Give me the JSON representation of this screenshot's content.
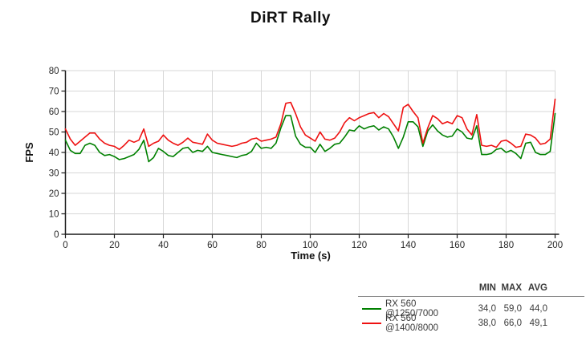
{
  "title": "DiRT Rally",
  "axes": {
    "x_label": "Time (s)",
    "y_label": "FPS"
  },
  "legend": {
    "headers": [
      "MIN",
      "MAX",
      "AVG"
    ]
  },
  "colors": {
    "green_series": "#008000",
    "red_series": "#ee1111",
    "grid": "#d7d7d7",
    "axis": "#1a1a1a",
    "tick_text": "#262626",
    "legend_text": "#3a3a3a",
    "legend_rule": "#888888",
    "background": "#ffffff"
  },
  "chart_data": {
    "type": "line",
    "title": "DiRT Rally",
    "xlabel": "Time (s)",
    "ylabel": "FPS",
    "xlim": [
      0,
      200
    ],
    "ylim": [
      0,
      80
    ],
    "xticks": [
      0,
      20,
      40,
      60,
      80,
      100,
      120,
      140,
      160,
      180,
      200
    ],
    "yticks": [
      0,
      10,
      20,
      30,
      40,
      50,
      60,
      70,
      80
    ],
    "grid": true,
    "legend_position": "bottom-right",
    "x_start": 0,
    "x_step": 2,
    "series": [
      {
        "name": "RX 560 @1250/7000",
        "color": "#008000",
        "stats": {
          "min": "34,0",
          "max": "59,0",
          "avg": "44,0"
        },
        "values": [
          46,
          41,
          39.5,
          39.5,
          43.5,
          44.5,
          43.5,
          40,
          38.5,
          39,
          38,
          36.5,
          37,
          38,
          39,
          41.5,
          46,
          35.5,
          37.5,
          42,
          40.5,
          38.5,
          38,
          40,
          42,
          42.5,
          40,
          41,
          40.5,
          43,
          40,
          39.5,
          39,
          38.5,
          38,
          37.5,
          38.5,
          39,
          40.5,
          44.5,
          42,
          42.5,
          42,
          44.5,
          52,
          58,
          58,
          48,
          44,
          42.5,
          42.5,
          40,
          44,
          40.5,
          42,
          44,
          44.5,
          47.5,
          51,
          50.5,
          53,
          51.5,
          52.5,
          53,
          51,
          52.5,
          51.5,
          47.5,
          42,
          47.5,
          55,
          55,
          52.5,
          43,
          50.5,
          53.5,
          50.5,
          48.5,
          47.5,
          48,
          51.5,
          50,
          47,
          46.5,
          53,
          39,
          39,
          39.5,
          41.5,
          42,
          40,
          41,
          39.5,
          37,
          44.5,
          45,
          40,
          39,
          39,
          40.5,
          59
        ]
      },
      {
        "name": "RX 560 @1400/8000",
        "color": "#ee1111",
        "stats": {
          "min": "38,0",
          "max": "66,0",
          "avg": "49,1"
        },
        "values": [
          51.5,
          46.5,
          43.5,
          45.5,
          47.5,
          49.5,
          49.5,
          46.5,
          44.5,
          43.5,
          43,
          41.5,
          43.5,
          46,
          45,
          46,
          51.5,
          43,
          44.5,
          45.5,
          48.5,
          46,
          44.5,
          43.5,
          45,
          47,
          45,
          44.5,
          44,
          49,
          46,
          44.5,
          44,
          43.5,
          43,
          43.5,
          44.5,
          45,
          46.5,
          47,
          45.5,
          46,
          46.5,
          47.5,
          54,
          64,
          64.5,
          59,
          52.5,
          48.5,
          47,
          45.5,
          50,
          46.5,
          46,
          47,
          50,
          54.5,
          57,
          55.5,
          57,
          58,
          59,
          59.5,
          57,
          59,
          57.5,
          54,
          50.5,
          62,
          63.5,
          60,
          57,
          44.5,
          52,
          58,
          56.5,
          54,
          55,
          54,
          58,
          57,
          51.5,
          48.5,
          58.5,
          43.5,
          43,
          43.5,
          42.5,
          45.5,
          46,
          44.5,
          42.5,
          43,
          49,
          48.5,
          47,
          44,
          44.5,
          46.5,
          66
        ]
      }
    ]
  }
}
